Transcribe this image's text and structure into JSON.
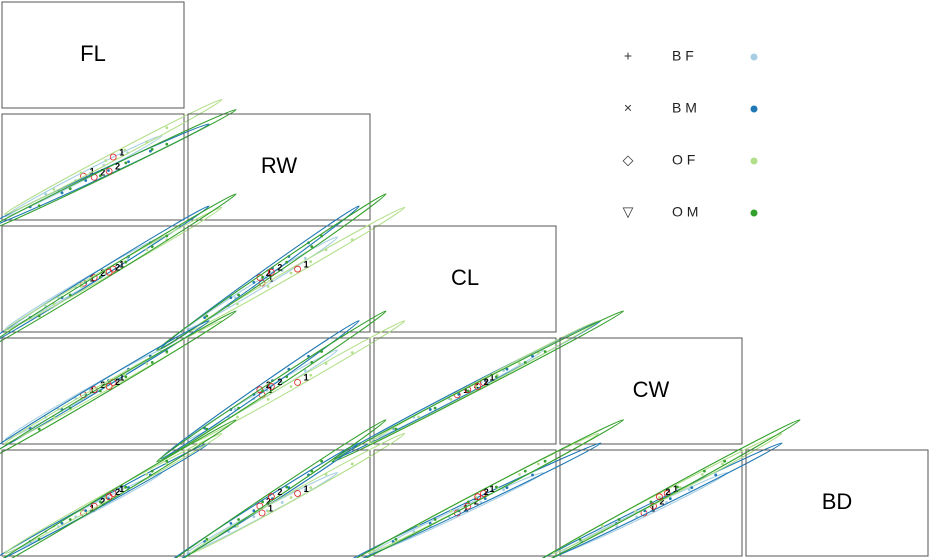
{
  "chart_data": {
    "type": "scatter-matrix",
    "variables": [
      "FL",
      "RW",
      "CL",
      "CW",
      "BD"
    ],
    "lims": [
      [
        6,
        24
      ],
      [
        6,
        21
      ],
      [
        14,
        48
      ],
      [
        16,
        55
      ],
      [
        6,
        22
      ]
    ],
    "groups": [
      {
        "name": "B F",
        "symbol": "+",
        "color": "#a6cee3",
        "center_label": "1",
        "points": [
          [
            9.8,
            8.9,
            20.4,
            23.9,
            8.8
          ],
          [
            11.2,
            9.5,
            23.8,
            27.4,
            9.7
          ],
          [
            13.1,
            11.2,
            27.7,
            32.1,
            11.5
          ],
          [
            14.7,
            12.4,
            31.2,
            35.8,
            12.6
          ],
          [
            16.2,
            13.8,
            34.3,
            39.2,
            14.1
          ],
          [
            18.8,
            15.9,
            39.0,
            44.6,
            16.4
          ]
        ]
      },
      {
        "name": "B M",
        "symbol": "×",
        "color": "#1f78b4",
        "center_label": "2",
        "points": [
          [
            8.1,
            6.7,
            16.1,
            19.0,
            7.0
          ],
          [
            11.6,
            9.1,
            23.8,
            27.3,
            10.3
          ],
          [
            14.2,
            11.2,
            29.7,
            34.0,
            12.6
          ],
          [
            16.7,
            12.9,
            35.2,
            40.1,
            14.8
          ],
          [
            18.9,
            14.4,
            39.7,
            45.2,
            16.8
          ],
          [
            21.3,
            16.2,
            45.0,
            50.9,
            19.1
          ]
        ]
      },
      {
        "name": "O F",
        "symbol": "◇",
        "color": "#b2df8a",
        "center_label": "1",
        "points": [
          [
            10.7,
            9.7,
            21.4,
            24.0,
            9.8
          ],
          [
            13.7,
            12.5,
            28.1,
            31.8,
            12.5
          ],
          [
            16.4,
            14.6,
            33.3,
            37.5,
            15.0
          ],
          [
            18.5,
            16.4,
            37.7,
            42.5,
            16.8
          ],
          [
            20.9,
            17.8,
            42.3,
            47.7,
            19.2
          ],
          [
            23.1,
            20.2,
            46.2,
            52.5,
            21.1
          ]
        ]
      },
      {
        "name": "O M",
        "symbol": "▽",
        "color": "#33a02c",
        "center_label": "2",
        "points": [
          [
            9.1,
            6.9,
            16.7,
            18.6,
            7.4
          ],
          [
            12.5,
            9.8,
            24.8,
            27.9,
            11.0
          ],
          [
            15.8,
            12.0,
            31.7,
            35.5,
            14.2
          ],
          [
            18.6,
            14.2,
            37.5,
            41.8,
            16.9
          ],
          [
            21.5,
            16.5,
            43.5,
            48.2,
            19.8
          ],
          [
            23.1,
            17.4,
            47.6,
            53.0,
            21.6
          ]
        ]
      }
    ]
  }
}
